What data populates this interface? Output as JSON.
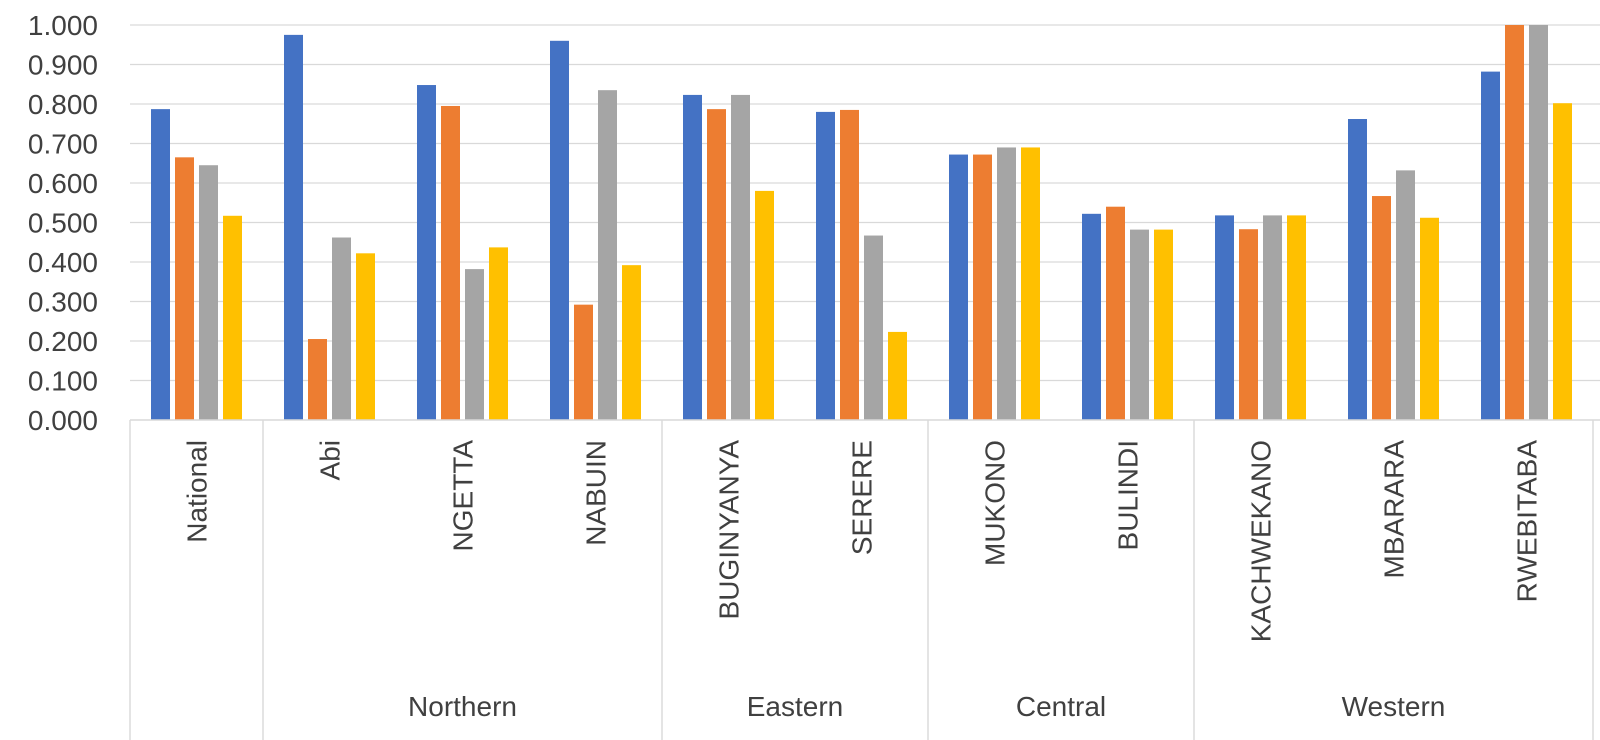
{
  "chart_data": {
    "type": "bar",
    "title": "",
    "xlabel": "",
    "ylabel": "",
    "ylim": [
      0,
      1.0
    ],
    "yticks": [
      "0.000",
      "0.100",
      "0.200",
      "0.300",
      "0.400",
      "0.500",
      "0.600",
      "0.700",
      "0.800",
      "0.900",
      "1.000"
    ],
    "grid": true,
    "legend": "none",
    "categories": [
      "National",
      "Abi",
      "NGETTA",
      "NABUIN",
      "BUGINYANYA",
      "SERERE",
      "MUKONO",
      "BULINDI",
      "KACHWEKANO",
      "MBARARA",
      "RWEBITABA"
    ],
    "groups": [
      {
        "label": "",
        "start": 0,
        "count": 1
      },
      {
        "label": "Northern",
        "start": 1,
        "count": 3
      },
      {
        "label": "Eastern",
        "start": 4,
        "count": 2
      },
      {
        "label": "Central",
        "start": 6,
        "count": 2
      },
      {
        "label": "Western",
        "start": 8,
        "count": 3
      }
    ],
    "series": [
      {
        "color": "#4472C4",
        "values": [
          0.787,
          0.975,
          0.848,
          0.96,
          0.823,
          0.78,
          0.672,
          0.522,
          0.518,
          0.762,
          0.882
        ]
      },
      {
        "color": "#ED7D31",
        "values": [
          0.665,
          0.205,
          0.795,
          0.292,
          0.787,
          0.785,
          0.672,
          0.54,
          0.483,
          0.567,
          1.0
        ]
      },
      {
        "color": "#A5A5A5",
        "values": [
          0.645,
          0.462,
          0.382,
          0.835,
          0.823,
          0.467,
          0.69,
          0.482,
          0.518,
          0.632,
          1.0
        ]
      },
      {
        "color": "#FFC000",
        "values": [
          0.517,
          0.422,
          0.437,
          0.392,
          0.58,
          0.223,
          0.69,
          0.482,
          0.518,
          0.512,
          0.802
        ]
      }
    ]
  }
}
